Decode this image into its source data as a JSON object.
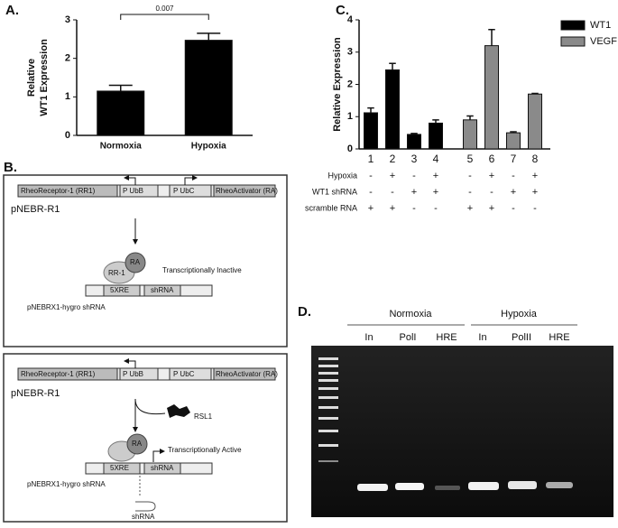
{
  "chart_data": [
    {
      "type": "bar",
      "panel_label": "A.",
      "ylabel": [
        "Relative",
        "WT1 Expression"
      ],
      "categories": [
        "Normoxia",
        "Hypoxia"
      ],
      "values": [
        1.15,
        2.47
      ],
      "errors": [
        0.15,
        0.18
      ],
      "color": "#000000",
      "ylim": [
        0,
        3
      ],
      "yticks": [
        0,
        1,
        2,
        3
      ],
      "annotation": "0.007"
    },
    {
      "type": "bar",
      "panel_label": "C.",
      "ylabel": "Relative Expression",
      "categories": [
        "1",
        "2",
        "3",
        "4",
        "5",
        "6",
        "7",
        "8"
      ],
      "series": [
        {
          "name": "WT1",
          "color": "#000000",
          "values": [
            1.12,
            2.45,
            0.45,
            0.8,
            null,
            null,
            null,
            null
          ],
          "errors": [
            0.15,
            0.2,
            0.03,
            0.1,
            null,
            null,
            null,
            null
          ]
        },
        {
          "name": "VEGF",
          "color": "#8a8a8a",
          "values": [
            null,
            null,
            null,
            null,
            0.9,
            3.2,
            0.5,
            1.7
          ],
          "errors": [
            null,
            null,
            null,
            null,
            0.12,
            0.5,
            0.03,
            0.02
          ]
        }
      ],
      "ylim": [
        0,
        4
      ],
      "yticks": [
        0,
        1,
        2,
        3,
        4
      ],
      "legend": "upper right",
      "conditions": [
        {
          "name": "Hypoxia",
          "values": [
            "-",
            "+",
            "-",
            "+",
            "-",
            "+",
            "-",
            "+"
          ]
        },
        {
          "name": "WT1 shRNA",
          "values": [
            "-",
            "-",
            "+",
            "+",
            "-",
            "-",
            "+",
            "+"
          ]
        },
        {
          "name": "scramble RNA",
          "values": [
            "+",
            "+",
            "-",
            "-",
            "+",
            "+",
            "-",
            "-"
          ]
        }
      ]
    }
  ],
  "panel_b": {
    "label": "B.",
    "top": {
      "segments": [
        "RheoReceptor-1 (RR1)",
        "P UbB",
        "P UbC",
        "RheoActivator (RA)"
      ],
      "plasmid": "pNEBR-R1",
      "complex": [
        "RA",
        "RR-1"
      ],
      "state": "Transcriptionally Inactive",
      "target_segments": [
        "5XRE",
        "shRNA"
      ],
      "target": "pNEBRX1-hygro shRNA"
    },
    "bottom": {
      "segments": [
        "RheoReceptor-1 (RR1)",
        "P UbB",
        "P UbC",
        "RheoActivator (RA)"
      ],
      "plasmid": "pNEBR-R1",
      "ligand": "RSL1",
      "complex": [
        "RA"
      ],
      "state": "Transcriptionally Active",
      "target_segments": [
        "5XRE",
        "shRNA"
      ],
      "target": "pNEBRX1-hygro shRNA",
      "product": "shRNA"
    }
  },
  "panel_d": {
    "label": "D.",
    "groups": [
      "Normoxia",
      "Hypoxia"
    ],
    "lanes": [
      "In",
      "PolI",
      "HRE",
      "In",
      "PolII",
      "HRE"
    ]
  }
}
